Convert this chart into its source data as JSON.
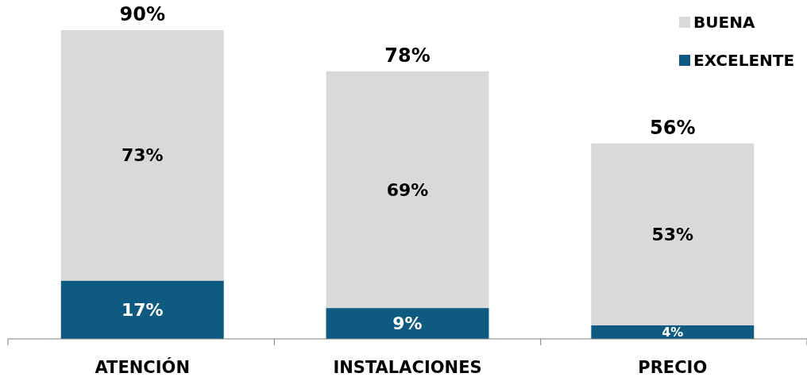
{
  "chart_data": {
    "type": "bar",
    "stacked": true,
    "relative": false,
    "categories": [
      "ATENCIÓN",
      "INSTALACIONES",
      "PRECIO"
    ],
    "series": [
      {
        "name": "EXCELENTE",
        "color": "#0f5a80",
        "values": [
          17,
          9,
          4
        ],
        "value_labels": [
          "17%",
          "9%",
          "4%"
        ]
      },
      {
        "name": "BUENA",
        "color": "#d9d9d9",
        "values": [
          73,
          69,
          53
        ],
        "value_labels": [
          "73%",
          "69%",
          "53%"
        ]
      }
    ],
    "totals": [
      "90%",
      "78%",
      "56%"
    ],
    "legend": "top right"
  }
}
